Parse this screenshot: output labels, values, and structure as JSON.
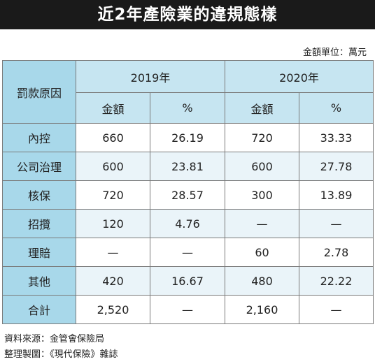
{
  "title": "近2年產險業的違規態樣",
  "unit_note": "金額單位：萬元",
  "table": {
    "row_header_label": "罰款原因",
    "years": [
      "2019年",
      "2020年"
    ],
    "sub_headers": [
      "金額",
      "%",
      "金額",
      "%"
    ],
    "rows": [
      {
        "reason": "內控",
        "cells": [
          "660",
          "26.19",
          "720",
          "33.33"
        ]
      },
      {
        "reason": "公司治理",
        "cells": [
          "600",
          "23.81",
          "600",
          "27.78"
        ]
      },
      {
        "reason": "核保",
        "cells": [
          "720",
          "28.57",
          "300",
          "13.89"
        ]
      },
      {
        "reason": "招攬",
        "cells": [
          "120",
          "4.76",
          "—",
          "—"
        ]
      },
      {
        "reason": "理賠",
        "cells": [
          "—",
          "—",
          "60",
          "2.78"
        ]
      },
      {
        "reason": "其他",
        "cells": [
          "420",
          "16.67",
          "480",
          "22.22"
        ]
      },
      {
        "reason": "合計",
        "cells": [
          "2,520",
          "—",
          "2,160",
          "—"
        ]
      }
    ]
  },
  "source_line": "資料來源：金管會保險局",
  "compiled_line": "整理製圖：《現代保險》雜誌",
  "colors": {
    "title_bg": "#1a1a1a",
    "row_header_bg": "#a8d8ea",
    "col_header_bg": "#c6e5f1",
    "stripe_bg": "#eaf4f9"
  }
}
